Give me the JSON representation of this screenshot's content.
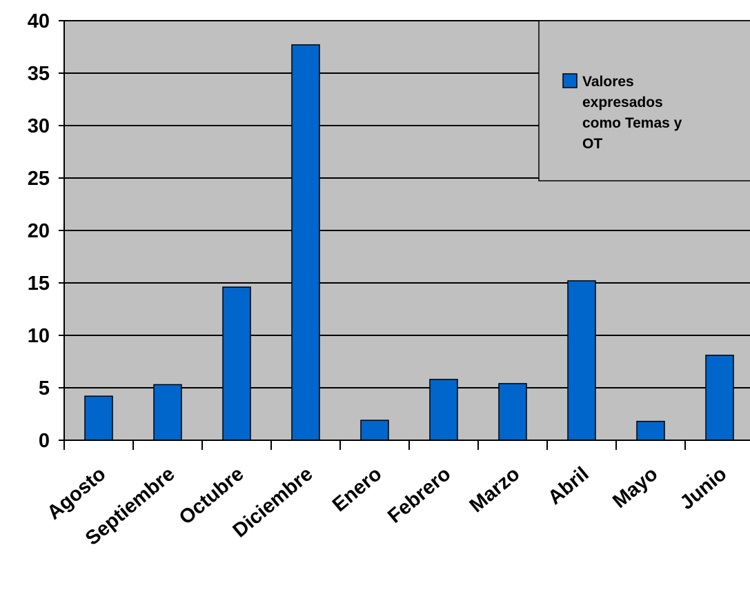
{
  "chart_data": {
    "type": "bar",
    "categories": [
      "Agosto",
      "Septiembre",
      "Octubre",
      "Diciembre",
      "Enero",
      "Febrero",
      "Marzo",
      "Abril",
      "Mayo",
      "Junio"
    ],
    "series": [
      {
        "name": "Valores expresados como Temas y OT",
        "values": [
          4.2,
          5.3,
          14.6,
          37.7,
          1.9,
          5.8,
          5.4,
          15.2,
          1.8,
          8.1
        ],
        "color": "#0066CC"
      }
    ],
    "y_ticks": [
      "0",
      "5",
      "10",
      "15",
      "20",
      "25",
      "30",
      "35",
      "40"
    ],
    "ylim": [
      0,
      40
    ],
    "grid": true,
    "legend_position": "top-right",
    "plot_background": "#C0C0C0",
    "xlabel": "",
    "ylabel": ""
  },
  "legend": {
    "lines": [
      "Valores",
      "expresados",
      "como Temas y",
      "OT"
    ]
  }
}
